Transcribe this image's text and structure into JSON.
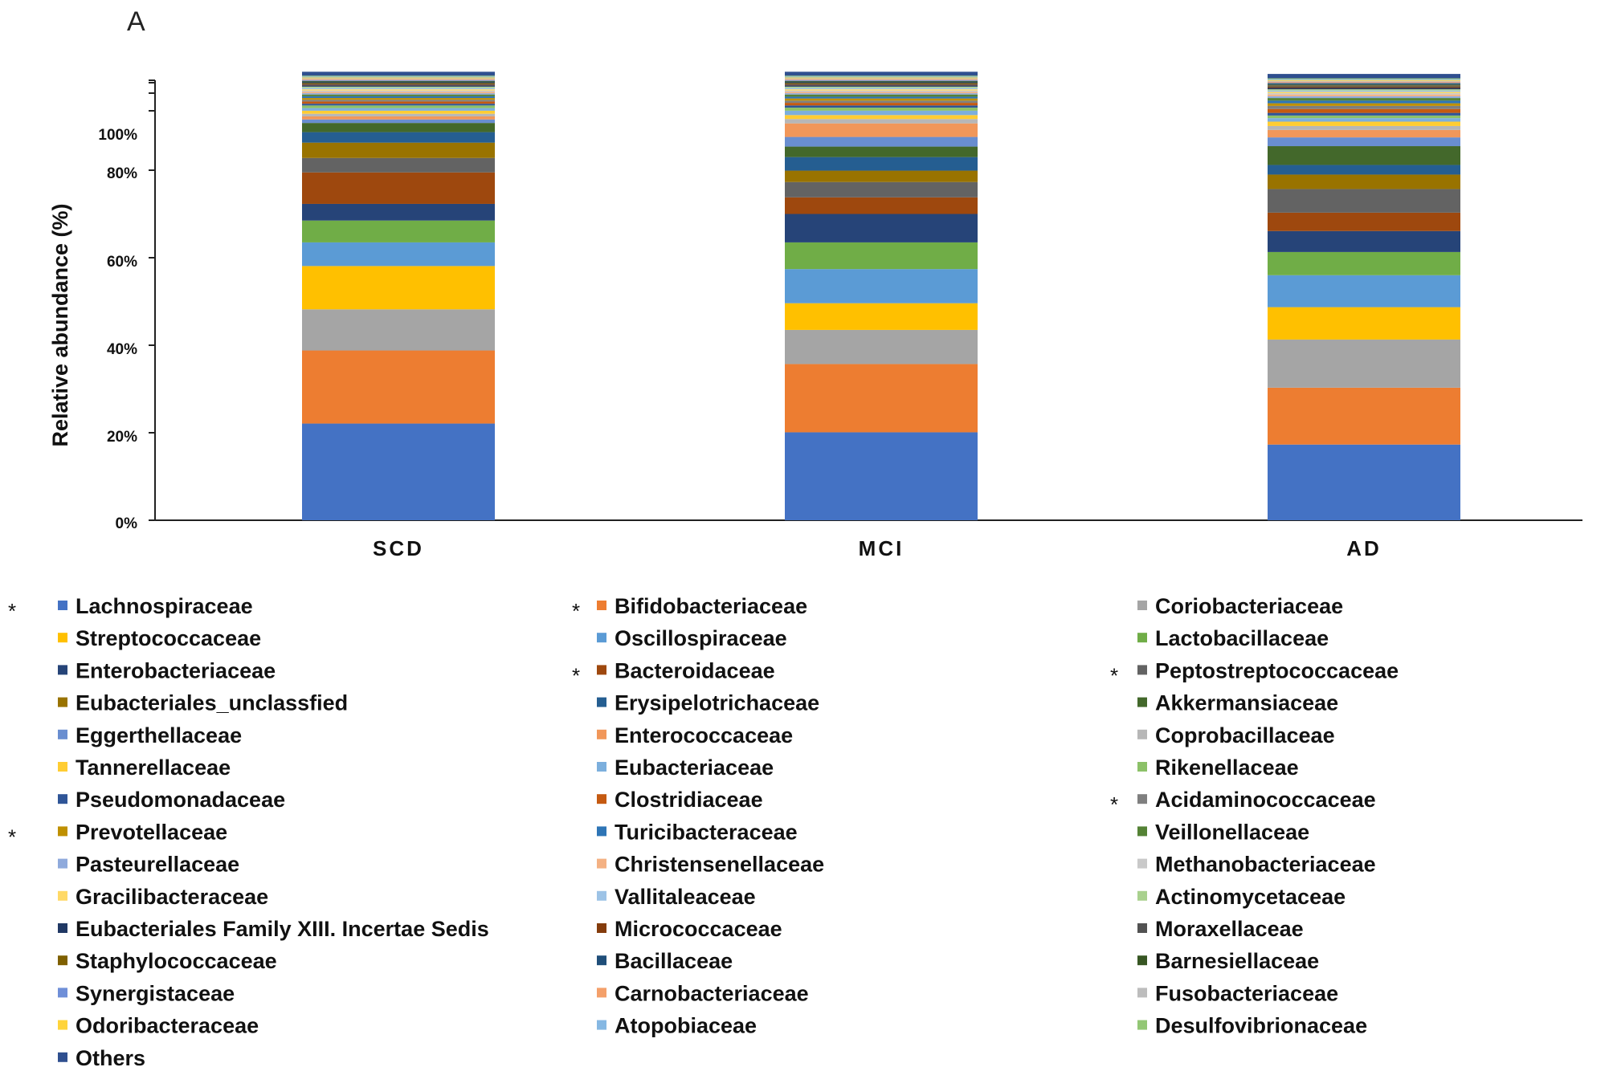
{
  "panel_label": "A",
  "chart_data": {
    "type": "bar",
    "stacked": true,
    "ylabel": "Relative abundance (%)",
    "yticks": [
      "0%",
      "20%",
      "40%",
      "60%",
      "80%",
      "100%"
    ],
    "ylim": [
      0,
      100
    ],
    "categories": [
      "SCD",
      "MCI",
      "AD"
    ],
    "series": [
      {
        "name": "Lachnospiraceae",
        "color": "#4472C4",
        "significant": true,
        "values": [
          22.1,
          20.1,
          17.3
        ]
      },
      {
        "name": "Bifidobacteriaceae",
        "color": "#ED7D31",
        "significant": true,
        "values": [
          16.7,
          15.6,
          13.0
        ]
      },
      {
        "name": "Coriobacteriaceae",
        "color": "#A5A5A5",
        "significant": false,
        "values": [
          9.4,
          7.8,
          11.0
        ]
      },
      {
        "name": "Streptococcaceae",
        "color": "#FFC000",
        "significant": false,
        "values": [
          9.9,
          6.1,
          7.4
        ]
      },
      {
        "name": "Oscillospiraceae",
        "color": "#5B9BD5",
        "significant": false,
        "values": [
          5.4,
          7.8,
          7.3
        ]
      },
      {
        "name": "Lactobacillaceae",
        "color": "#70AD47",
        "significant": false,
        "values": [
          5.0,
          6.1,
          5.3
        ]
      },
      {
        "name": "Enterobacteriaceae",
        "color": "#264478",
        "significant": false,
        "values": [
          3.8,
          6.5,
          4.8
        ]
      },
      {
        "name": "Bacteroidaceae",
        "color": "#9E480E",
        "significant": true,
        "values": [
          7.2,
          3.8,
          4.2
        ]
      },
      {
        "name": "Peptostreptococcaceae",
        "color": "#636363",
        "significant": true,
        "values": [
          3.3,
          3.5,
          5.4
        ]
      },
      {
        "name": "Eubacteriales_unclassfied",
        "color": "#997300",
        "significant": false,
        "values": [
          3.5,
          2.6,
          3.3
        ]
      },
      {
        "name": "Erysipelotrichaceae",
        "color": "#255E91",
        "significant": false,
        "values": [
          2.4,
          3.1,
          2.2
        ]
      },
      {
        "name": "Akkermansiaceae",
        "color": "#43682B",
        "significant": false,
        "values": [
          2.1,
          2.4,
          4.3
        ]
      },
      {
        "name": "Eggerthellaceae",
        "color": "#698ED0",
        "significant": false,
        "values": [
          0.8,
          2.2,
          2.0
        ]
      },
      {
        "name": "Enterococcaceae",
        "color": "#F1975A",
        "significant": false,
        "values": [
          0.7,
          3.1,
          1.7
        ]
      },
      {
        "name": "Coprobacillaceae",
        "color": "#B7B7B7",
        "significant": false,
        "values": [
          0.6,
          1.0,
          0.9
        ]
      },
      {
        "name": "Tannerellaceae",
        "color": "#FFCD33",
        "significant": false,
        "values": [
          0.7,
          0.9,
          1.0
        ]
      },
      {
        "name": "Eubacteriaceae",
        "color": "#7CAFDD",
        "significant": false,
        "values": [
          0.6,
          1.0,
          0.8
        ]
      },
      {
        "name": "Rikenellaceae",
        "color": "#8CC168",
        "significant": false,
        "values": [
          0.6,
          0.7,
          0.6
        ]
      },
      {
        "name": "Pseudomonadaceae",
        "color": "#2F5597",
        "significant": false,
        "values": [
          0.4,
          0.5,
          0.6
        ]
      },
      {
        "name": "Clostridiaceae",
        "color": "#C55A11",
        "significant": false,
        "values": [
          0.5,
          0.6,
          0.9
        ]
      },
      {
        "name": "Acidaminococcaceae",
        "color": "#7F7F7F",
        "significant": true,
        "values": [
          0.4,
          0.5,
          0.7
        ]
      },
      {
        "name": "Prevotellaceae",
        "color": "#BF9000",
        "significant": true,
        "values": [
          0.4,
          0.5,
          0.6
        ]
      },
      {
        "name": "Turicibacteraceae",
        "color": "#2E75B6",
        "significant": false,
        "values": [
          0.4,
          0.4,
          0.6
        ]
      },
      {
        "name": "Veillonellaceae",
        "color": "#548235",
        "significant": false,
        "values": [
          0.4,
          0.5,
          0.6
        ]
      },
      {
        "name": "Pasteurellaceae",
        "color": "#8FAADC",
        "significant": false,
        "values": [
          0.3,
          0.3,
          0.4
        ]
      },
      {
        "name": "Christensenellaceae",
        "color": "#F4B183",
        "significant": false,
        "values": [
          0.3,
          0.3,
          0.4
        ]
      },
      {
        "name": "Methanobacteriaceae",
        "color": "#C9C9C9",
        "significant": false,
        "values": [
          0.3,
          0.3,
          0.3
        ]
      },
      {
        "name": "Gracilibacteraceae",
        "color": "#FFD966",
        "significant": false,
        "values": [
          0.3,
          0.3,
          0.3
        ]
      },
      {
        "name": "Vallitaleaceae",
        "color": "#9DC3E6",
        "significant": false,
        "values": [
          0.3,
          0.3,
          0.3
        ]
      },
      {
        "name": "Actinomycetaceae",
        "color": "#A9D18E",
        "significant": false,
        "values": [
          0.3,
          0.3,
          0.3
        ]
      },
      {
        "name": "Eubacteriales Family XIII. Incertae Sedis",
        "color": "#203864",
        "significant": false,
        "values": [
          0.3,
          0.3,
          0.3
        ]
      },
      {
        "name": "Micrococcaceae",
        "color": "#843C0C",
        "significant": false,
        "values": [
          0.2,
          0.2,
          0.2
        ]
      },
      {
        "name": "Moraxellaceae",
        "color": "#525252",
        "significant": false,
        "values": [
          0.2,
          0.2,
          0.2
        ]
      },
      {
        "name": "Staphylococcaceae",
        "color": "#7F6000",
        "significant": false,
        "values": [
          0.2,
          0.2,
          0.2
        ]
      },
      {
        "name": "Bacillaceae",
        "color": "#1F4E79",
        "significant": false,
        "values": [
          0.2,
          0.2,
          0.2
        ]
      },
      {
        "name": "Barnesiellaceae",
        "color": "#375623",
        "significant": false,
        "values": [
          0.2,
          0.2,
          0.2
        ]
      },
      {
        "name": "Synergistaceae",
        "color": "#6F8FD8",
        "significant": false,
        "values": [
          0.2,
          0.2,
          0.2
        ]
      },
      {
        "name": "Carnobacteriaceae",
        "color": "#F4A06A",
        "significant": false,
        "values": [
          0.2,
          0.2,
          0.2
        ]
      },
      {
        "name": "Fusobacteriaceae",
        "color": "#BDBDBD",
        "significant": false,
        "values": [
          0.2,
          0.2,
          0.2
        ]
      },
      {
        "name": "Odoribacteraceae",
        "color": "#FFD43B",
        "significant": false,
        "values": [
          0.2,
          0.2,
          0.2
        ]
      },
      {
        "name": "Atopobiaceae",
        "color": "#86B8E3",
        "significant": false,
        "values": [
          0.2,
          0.2,
          0.2
        ]
      },
      {
        "name": "Desulfovibrionaceae",
        "color": "#93C775",
        "significant": false,
        "values": [
          0.2,
          0.2,
          0.2
        ]
      },
      {
        "name": "Others",
        "color": "#2F4F8F",
        "significant": false,
        "values": [
          0.9,
          0.9,
          1.0
        ]
      }
    ],
    "legend_position": "bottom",
    "significance_marker": "*"
  }
}
